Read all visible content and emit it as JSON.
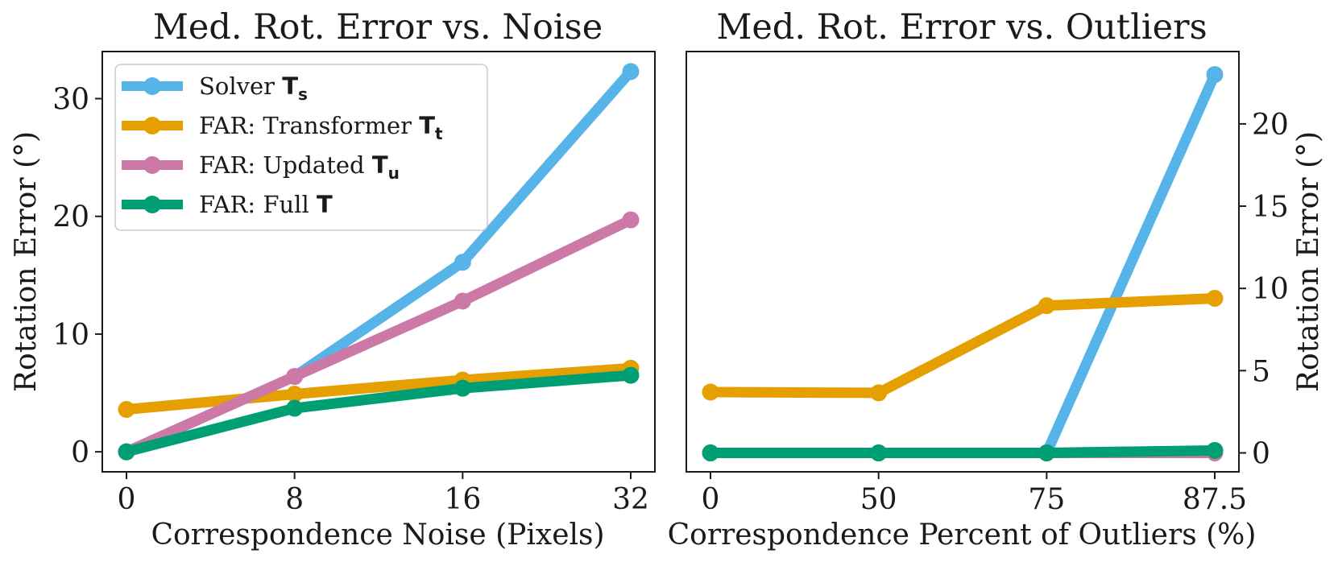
{
  "chart_data": [
    {
      "type": "line",
      "title": "Med. Rot. Error vs. Noise",
      "xlabel": "Correspondence Noise (Pixels)",
      "ylabel": "Rotation Error (°)",
      "x_tick_labels": [
        "0",
        "8",
        "16",
        "32"
      ],
      "y_ticks": [
        0,
        10,
        20,
        30
      ],
      "ylim": [
        -1.7,
        34
      ],
      "y_axis_side": "left",
      "series": [
        {
          "name": "Solver Ts",
          "color": "#56b4e9",
          "values": [
            0,
            6.4,
            16.1,
            32.3
          ]
        },
        {
          "name": "FAR: Transformer Tt",
          "color": "#e69f00",
          "values": [
            3.6,
            4.9,
            6.1,
            7.1
          ]
        },
        {
          "name": "FAR: Updated Tu",
          "color": "#cc79a7",
          "values": [
            0,
            6.4,
            12.8,
            19.7
          ]
        },
        {
          "name": "FAR: Full T",
          "color": "#009e73",
          "values": [
            0,
            3.7,
            5.4,
            6.5
          ]
        }
      ]
    },
    {
      "type": "line",
      "title": "Med. Rot. Error vs. Outliers",
      "xlabel": "Correspondence Percent of Outliers (%)",
      "ylabel": "Rotation Error (°)",
      "x_tick_labels": [
        "0",
        "50",
        "75",
        "87.5"
      ],
      "y_ticks": [
        0,
        5,
        10,
        15,
        20
      ],
      "ylim": [
        -1.15,
        24.4
      ],
      "y_axis_side": "right",
      "series": [
        {
          "name": "Solver Ts",
          "color": "#56b4e9",
          "values": [
            0,
            0,
            0,
            23.0
          ]
        },
        {
          "name": "FAR: Transformer Tt",
          "color": "#e69f00",
          "values": [
            3.7,
            3.65,
            8.95,
            9.4
          ]
        },
        {
          "name": "FAR: Updated Tu",
          "color": "#cc79a7",
          "values": [
            0,
            0,
            0,
            0
          ]
        },
        {
          "name": "FAR: Full T",
          "color": "#009e73",
          "values": [
            0,
            0,
            0,
            0.15
          ]
        }
      ]
    }
  ],
  "legend": {
    "location": "upper-left",
    "items": [
      {
        "prefix": "Solver ",
        "symbol": "T",
        "subscript": "s",
        "color": "#56b4e9"
      },
      {
        "prefix": "FAR: Transformer ",
        "symbol": "T",
        "subscript": "t",
        "color": "#e69f00"
      },
      {
        "prefix": "FAR: Updated ",
        "symbol": "T",
        "subscript": "u",
        "color": "#cc79a7"
      },
      {
        "prefix": "FAR: Full ",
        "symbol": "T",
        "subscript": "",
        "color": "#009e73"
      }
    ]
  }
}
